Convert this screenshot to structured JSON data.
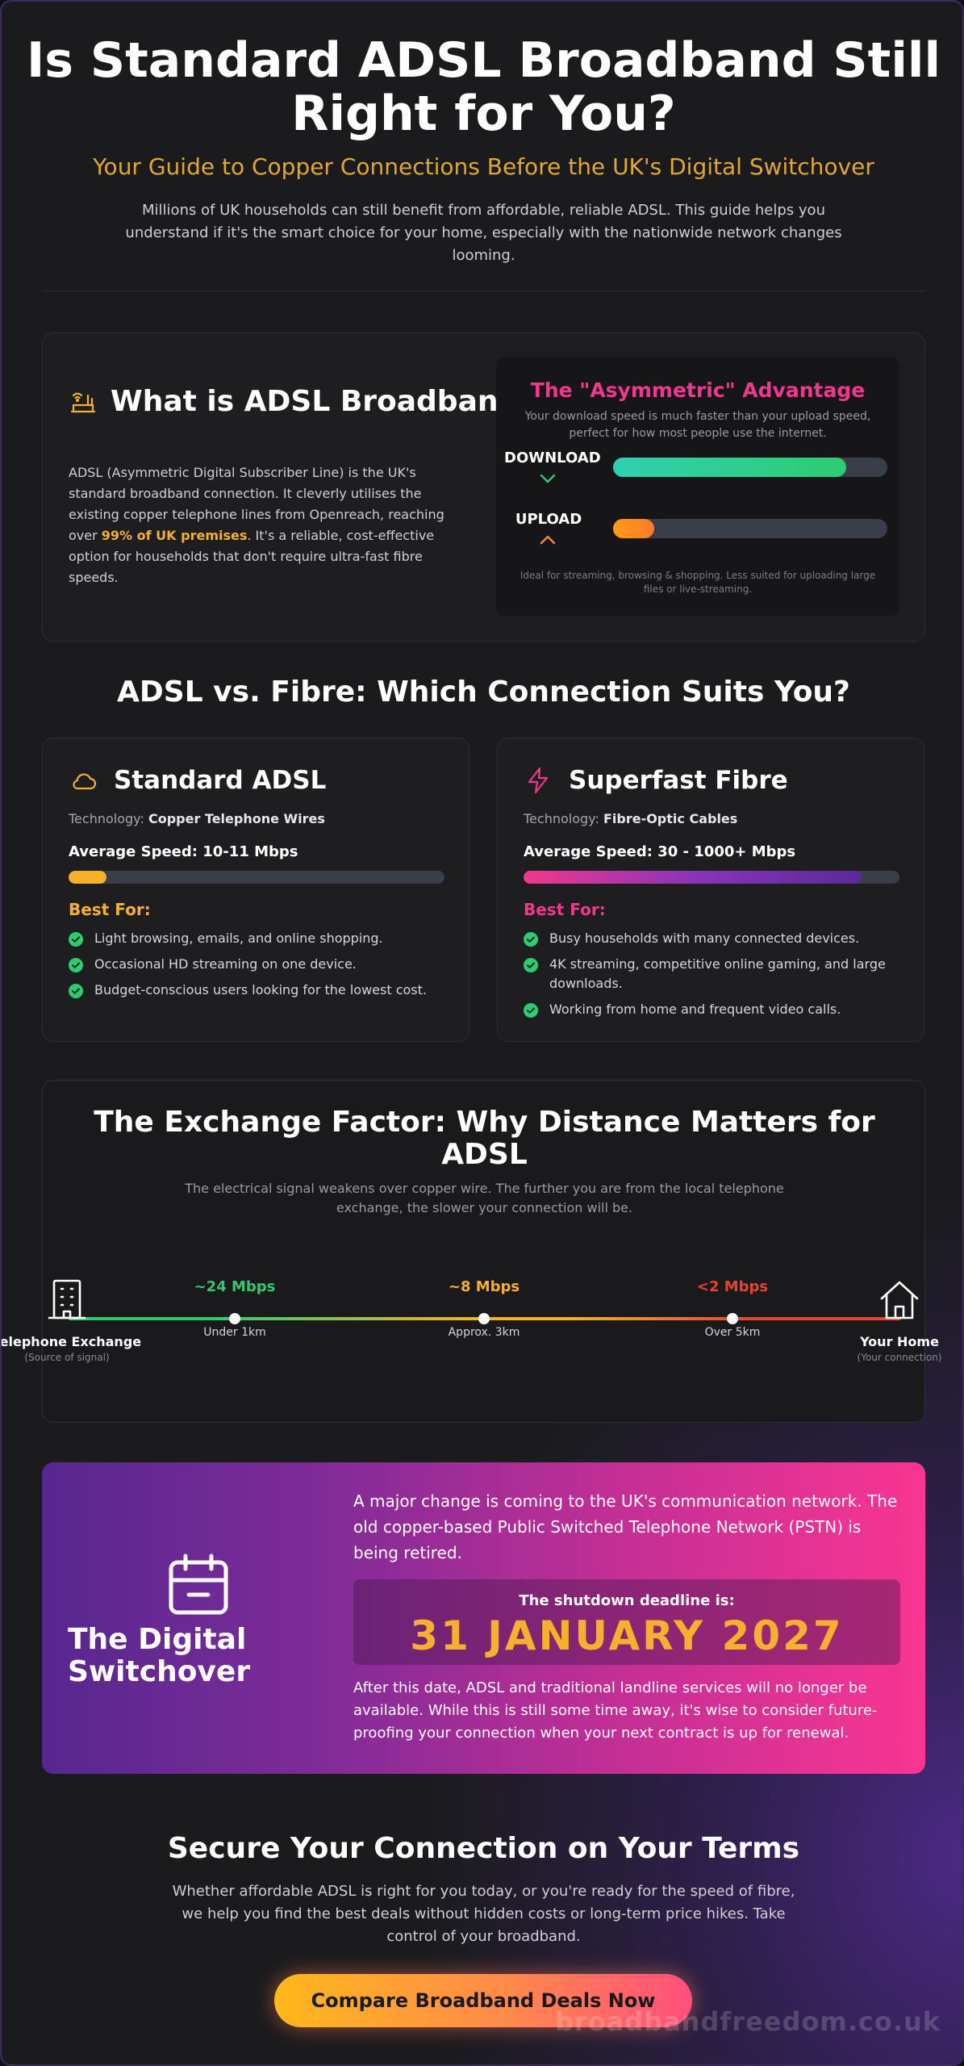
{
  "hero": {
    "title": "Is Standard ADSL Broadband Still Right for You?",
    "subtitle": "Your Guide to Copper Connections Before the UK's Digital Switchover",
    "intro": "Millions of UK households can still benefit from affordable, reliable ADSL. This guide helps you understand if it's the smart choice for your home, especially with the nationwide network changes looming."
  },
  "what_is": {
    "icon": "router-icon",
    "title": "What is ADSL Broadband?",
    "body_before": "ADSL (Asymmetric Digital Subscriber Line) is the UK's standard broadband connection. It cleverly utilises the existing copper telephone lines from Openreach, reaching over ",
    "body_highlight": "99% of UK premises",
    "body_after": ". It's a reliable, cost-effective option for households that don't require ultra-fast fibre speeds.",
    "asymmetric": {
      "title": "The \"Asymmetric\" Advantage",
      "desc": "Your download speed is much faster than your upload speed, perfect for how most people use the internet.",
      "download_label": "DOWNLOAD",
      "download_level": 0.85,
      "upload_label": "UPLOAD",
      "upload_level": 0.15,
      "note": "Ideal for streaming, browsing & shopping. Less suited for uploading large files or live-streaming."
    }
  },
  "comparison": {
    "title": "ADSL vs. Fibre: Which Connection Suits You?",
    "adsl": {
      "icon": "cloud-icon",
      "title": "Standard ADSL",
      "tech_label": "Technology:",
      "tech_value": "Copper Telephone Wires",
      "avg_speed": "Average Speed: 10-11 Mbps",
      "speed_level": 0.1,
      "best_for": "Best For:",
      "items": [
        "Light browsing, emails, and online shopping.",
        "Occasional HD streaming on one device.",
        "Budget-conscious users looking for the lowest cost."
      ]
    },
    "fibre": {
      "icon": "lightning-icon",
      "title": "Superfast Fibre",
      "tech_label": "Technology:",
      "tech_value": "Fibre-Optic Cables",
      "avg_speed": "Average Speed: 30 - 1000+ Mbps",
      "speed_level": 0.9,
      "best_for": "Best For:",
      "items": [
        "Busy households with many connected devices.",
        "4K streaming, competitive online gaming, and large downloads.",
        "Working from home and frequent video calls."
      ]
    }
  },
  "exchange": {
    "title": "The Exchange Factor: Why Distance Matters for ADSL",
    "desc": "The electrical signal weakens over copper wire. The further you are from the local telephone exchange, the slower your connection will be.",
    "start_label": "Telephone Exchange",
    "start_sub": "(Source of signal)",
    "end_label": "Your Home",
    "end_sub": "(Your connection)",
    "points": [
      {
        "speed": "~24 Mbps",
        "distance": "Under 1km"
      },
      {
        "speed": "~8 Mbps",
        "distance": "Approx. 3km"
      },
      {
        "speed": "<2 Mbps",
        "distance": "Over 5km"
      }
    ]
  },
  "switchover": {
    "icon": "calendar-icon",
    "title": "The Digital Switchover",
    "p1": "A major change is coming to the UK's communication network. The old copper-based Public Switched Telephone Network (PSTN) is being retired.",
    "deadline_label": "The shutdown deadline is:",
    "deadline_value": "31 JANUARY 2027",
    "p2": "After this date, ADSL and traditional landline services will no longer be available. While this is still some time away, it's wise to consider future-proofing your connection when your next contract is up for renewal."
  },
  "cta": {
    "title": "Secure Your Connection on Your Terms",
    "body": "Whether affordable ADSL is right for you today, or you're ready for the speed of fibre, we help you find the best deals without hidden costs or long-term price hikes. Take control of your broadband.",
    "button": "Compare Broadband Deals Now",
    "watermark": "broadbandfreedom.co.uk"
  },
  "colors": {
    "accent_orange": "#f5b12a",
    "accent_pink": "#f0388c",
    "check_green": "#2ecc71",
    "slow_red": "#e5452f"
  }
}
